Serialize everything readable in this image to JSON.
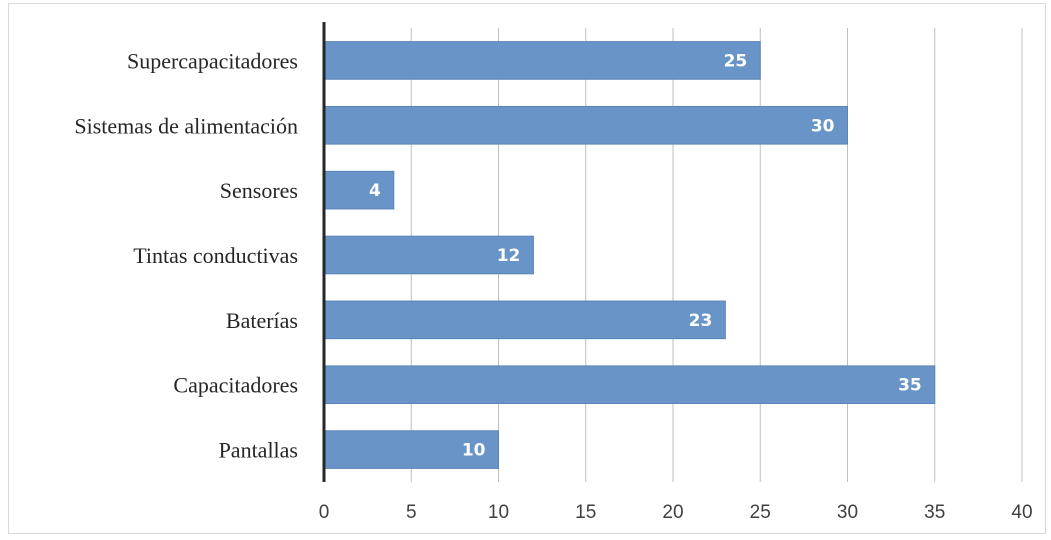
{
  "chart_data": {
    "type": "bar",
    "orientation": "horizontal",
    "categories": [
      "Supercapacitadores",
      "Sistemas de alimentación",
      "Sensores",
      "Tintas conductivas",
      "Baterías",
      "Capacitadores",
      "Pantallas"
    ],
    "values": [
      25,
      30,
      4,
      12,
      23,
      35,
      10
    ],
    "xlim": [
      0,
      40
    ],
    "x_ticks": [
      "0",
      "5",
      "10",
      "15",
      "20",
      "25",
      "30",
      "35",
      "40"
    ],
    "title": "",
    "xlabel": "",
    "ylabel": "",
    "grid": "vertical",
    "legend": "none",
    "bar_color": "#6894c8",
    "bar_edge_color": "#5b84b8",
    "axis_color": "#262626",
    "grid_color": "#bfbfbf"
  }
}
